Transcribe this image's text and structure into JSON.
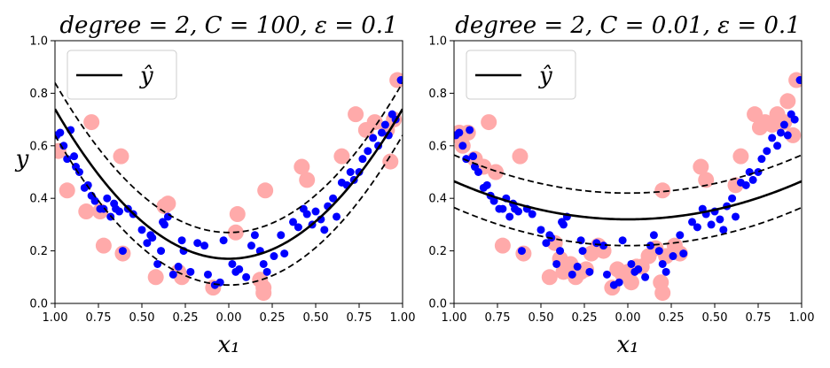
{
  "chart_data": [
    {
      "type": "scatter",
      "title": "degree = 2, C = 100, ε = 0.1",
      "xlabel": "x₁",
      "ylabel": "y",
      "xlim": [
        -1.0,
        1.0
      ],
      "ylim": [
        0.0,
        1.0
      ],
      "x_ticks": [
        -1.0,
        -0.75,
        -0.5,
        -0.25,
        0.0,
        0.25,
        0.5,
        0.75,
        1.0
      ],
      "x_tick_labels": [
        "1.00",
        "0.75",
        "0.50",
        "0.25",
        "0.00",
        "0.25",
        "0.50",
        "0.75",
        "1.00"
      ],
      "y_ticks": [
        0.0,
        0.2,
        0.4,
        0.6,
        0.8,
        1.0
      ],
      "y_tick_labels": [
        "0.0",
        "0.2",
        "0.4",
        "0.6",
        "0.8",
        "1.0"
      ],
      "legend": {
        "label": "ŷ",
        "location": "upper left"
      },
      "grid": false,
      "series": [
        {
          "name": "ŷ",
          "kind": "line",
          "style": "solid",
          "color": "#000000",
          "coef": [
            0.17,
            0.0,
            0.57
          ]
        },
        {
          "kind": "line",
          "style": "dashed",
          "color": "#000000",
          "coef": [
            0.27,
            0.0,
            0.57
          ]
        },
        {
          "kind": "line",
          "style": "dashed",
          "color": "#000000",
          "coef": [
            0.07,
            0.0,
            0.57
          ]
        },
        {
          "kind": "scatter",
          "role": "support vectors",
          "color": "#ffaaaa",
          "x": [
            -0.98,
            -0.93,
            -0.82,
            -0.79,
            -0.74,
            -0.72,
            -0.62,
            -0.61,
            -0.42,
            -0.37,
            -0.35,
            -0.29,
            -0.27,
            -0.09,
            0.05,
            0.04,
            0.18,
            0.2,
            0.2,
            0.21,
            0.42,
            0.45,
            0.65,
            0.73,
            0.79,
            0.84,
            0.91,
            0.93,
            0.95,
            0.97
          ],
          "y": [
            0.58,
            0.43,
            0.35,
            0.69,
            0.35,
            0.22,
            0.56,
            0.19,
            0.1,
            0.37,
            0.38,
            0.12,
            0.1,
            0.06,
            0.34,
            0.27,
            0.09,
            0.06,
            0.04,
            0.43,
            0.52,
            0.47,
            0.56,
            0.72,
            0.66,
            0.69,
            0.66,
            0.54,
            0.7,
            0.85
          ]
        },
        {
          "kind": "scatter",
          "role": "instances",
          "color": "#0000ff",
          "x": [
            -0.99,
            -0.97,
            -0.95,
            -0.93,
            -0.91,
            -0.89,
            -0.88,
            -0.86,
            -0.83,
            -0.81,
            -0.79,
            -0.77,
            -0.74,
            -0.72,
            -0.7,
            -0.68,
            -0.66,
            -0.65,
            -0.63,
            -0.61,
            -0.58,
            -0.55,
            -0.5,
            -0.47,
            -0.45,
            -0.44,
            -0.41,
            -0.39,
            -0.38,
            -0.37,
            -0.35,
            -0.32,
            -0.29,
            -0.27,
            -0.26,
            -0.22,
            -0.18,
            -0.14,
            -0.12,
            -0.08,
            -0.05,
            -0.03,
            0.02,
            0.04,
            0.06,
            0.1,
            0.13,
            0.15,
            0.18,
            0.2,
            0.22,
            0.26,
            0.3,
            0.32,
            0.37,
            0.4,
            0.43,
            0.45,
            0.48,
            0.5,
            0.53,
            0.55,
            0.57,
            0.6,
            0.62,
            0.65,
            0.68,
            0.7,
            0.72,
            0.75,
            0.77,
            0.8,
            0.83,
            0.86,
            0.88,
            0.9,
            0.92,
            0.94,
            0.96,
            0.99
          ],
          "y": [
            0.64,
            0.65,
            0.6,
            0.55,
            0.66,
            0.56,
            0.52,
            0.5,
            0.44,
            0.45,
            0.41,
            0.39,
            0.36,
            0.36,
            0.4,
            0.33,
            0.38,
            0.36,
            0.35,
            0.2,
            0.36,
            0.34,
            0.28,
            0.23,
            0.26,
            0.25,
            0.15,
            0.2,
            0.31,
            0.3,
            0.33,
            0.11,
            0.14,
            0.24,
            0.2,
            0.12,
            0.23,
            0.22,
            0.11,
            0.07,
            0.08,
            0.24,
            0.15,
            0.12,
            0.13,
            0.1,
            0.22,
            0.26,
            0.2,
            0.15,
            0.12,
            0.18,
            0.26,
            0.19,
            0.31,
            0.29,
            0.36,
            0.34,
            0.3,
            0.35,
            0.32,
            0.28,
            0.37,
            0.4,
            0.33,
            0.46,
            0.45,
            0.5,
            0.47,
            0.5,
            0.55,
            0.58,
            0.63,
            0.6,
            0.65,
            0.68,
            0.64,
            0.72,
            0.7,
            0.85
          ]
        }
      ]
    },
    {
      "type": "scatter",
      "title": "degree = 2, C = 0.01, ε = 0.1",
      "xlabel": "x₁",
      "ylabel": "",
      "xlim": [
        -1.0,
        1.0
      ],
      "ylim": [
        0.0,
        1.0
      ],
      "x_ticks": [
        -1.0,
        -0.75,
        -0.5,
        -0.25,
        0.0,
        0.25,
        0.5,
        0.75,
        1.0
      ],
      "x_tick_labels": [
        "1.00",
        "0.75",
        "0.50",
        "0.25",
        "0.00",
        "0.25",
        "0.50",
        "0.75",
        "1.00"
      ],
      "y_ticks": [
        0.0,
        0.2,
        0.4,
        0.6,
        0.8,
        1.0
      ],
      "y_tick_labels": [
        "0.0",
        "0.2",
        "0.4",
        "0.6",
        "0.8",
        "1.0"
      ],
      "legend": {
        "label": "ŷ",
        "location": "upper left"
      },
      "grid": false,
      "series": [
        {
          "name": "ŷ",
          "kind": "line",
          "style": "solid",
          "color": "#000000",
          "coef": [
            0.32,
            0.0,
            0.145
          ]
        },
        {
          "kind": "line",
          "style": "dashed",
          "color": "#000000",
          "coef": [
            0.42,
            0.0,
            0.145
          ]
        },
        {
          "kind": "line",
          "style": "dashed",
          "color": "#000000",
          "coef": [
            0.22,
            0.0,
            0.145
          ]
        },
        {
          "kind": "scatter",
          "role": "support vectors",
          "color": "#ffaaaa",
          "x": [
            -0.99,
            -0.97,
            -0.95,
            -0.92,
            -0.88,
            -0.83,
            -0.8,
            -0.76,
            -0.72,
            -0.62,
            -0.6,
            -0.45,
            -0.42,
            -0.39,
            -0.37,
            -0.33,
            -0.3,
            -0.27,
            -0.24,
            -0.21,
            -0.17,
            -0.14,
            -0.09,
            -0.06,
            -0.03,
            0.0,
            0.02,
            0.05,
            0.08,
            0.12,
            0.16,
            0.19,
            0.2,
            0.2,
            0.22,
            0.27,
            0.3,
            0.42,
            0.45,
            0.62,
            0.65,
            0.73,
            0.76,
            0.79,
            0.83,
            0.86,
            0.9,
            0.92,
            0.95,
            0.97
          ],
          "y": [
            0.64,
            0.65,
            0.6,
            0.65,
            0.55,
            0.52,
            0.69,
            0.5,
            0.22,
            0.56,
            0.19,
            0.1,
            0.23,
            0.17,
            0.12,
            0.15,
            0.1,
            0.12,
            0.13,
            0.19,
            0.22,
            0.2,
            0.06,
            0.13,
            0.11,
            0.12,
            0.08,
            0.14,
            0.14,
            0.18,
            0.21,
            0.08,
            0.04,
            0.43,
            0.18,
            0.22,
            0.19,
            0.52,
            0.47,
            0.45,
            0.56,
            0.72,
            0.67,
            0.69,
            0.68,
            0.72,
            0.69,
            0.77,
            0.64,
            0.85
          ]
        },
        {
          "kind": "scatter",
          "role": "instances",
          "color": "#0000ff",
          "x": [
            -0.99,
            -0.97,
            -0.95,
            -0.93,
            -0.91,
            -0.89,
            -0.88,
            -0.86,
            -0.83,
            -0.81,
            -0.79,
            -0.77,
            -0.74,
            -0.72,
            -0.7,
            -0.68,
            -0.66,
            -0.65,
            -0.63,
            -0.61,
            -0.58,
            -0.55,
            -0.5,
            -0.47,
            -0.45,
            -0.44,
            -0.41,
            -0.39,
            -0.38,
            -0.37,
            -0.35,
            -0.32,
            -0.29,
            -0.27,
            -0.26,
            -0.22,
            -0.18,
            -0.14,
            -0.12,
            -0.08,
            -0.05,
            -0.03,
            0.02,
            0.04,
            0.06,
            0.1,
            0.13,
            0.15,
            0.18,
            0.2,
            0.22,
            0.26,
            0.3,
            0.32,
            0.37,
            0.4,
            0.43,
            0.45,
            0.48,
            0.5,
            0.53,
            0.55,
            0.57,
            0.6,
            0.62,
            0.65,
            0.68,
            0.7,
            0.72,
            0.75,
            0.77,
            0.8,
            0.83,
            0.86,
            0.88,
            0.9,
            0.92,
            0.94,
            0.96,
            0.99
          ],
          "y": [
            0.64,
            0.65,
            0.6,
            0.55,
            0.66,
            0.56,
            0.52,
            0.5,
            0.44,
            0.45,
            0.41,
            0.39,
            0.36,
            0.36,
            0.4,
            0.33,
            0.38,
            0.36,
            0.35,
            0.2,
            0.36,
            0.34,
            0.28,
            0.23,
            0.26,
            0.25,
            0.15,
            0.2,
            0.31,
            0.3,
            0.33,
            0.11,
            0.14,
            0.24,
            0.2,
            0.12,
            0.23,
            0.22,
            0.11,
            0.07,
            0.08,
            0.24,
            0.15,
            0.12,
            0.13,
            0.1,
            0.22,
            0.26,
            0.2,
            0.15,
            0.12,
            0.18,
            0.26,
            0.19,
            0.31,
            0.29,
            0.36,
            0.34,
            0.3,
            0.35,
            0.32,
            0.28,
            0.37,
            0.4,
            0.33,
            0.46,
            0.45,
            0.5,
            0.47,
            0.5,
            0.55,
            0.58,
            0.63,
            0.6,
            0.65,
            0.68,
            0.64,
            0.72,
            0.7,
            0.85
          ]
        }
      ]
    }
  ]
}
